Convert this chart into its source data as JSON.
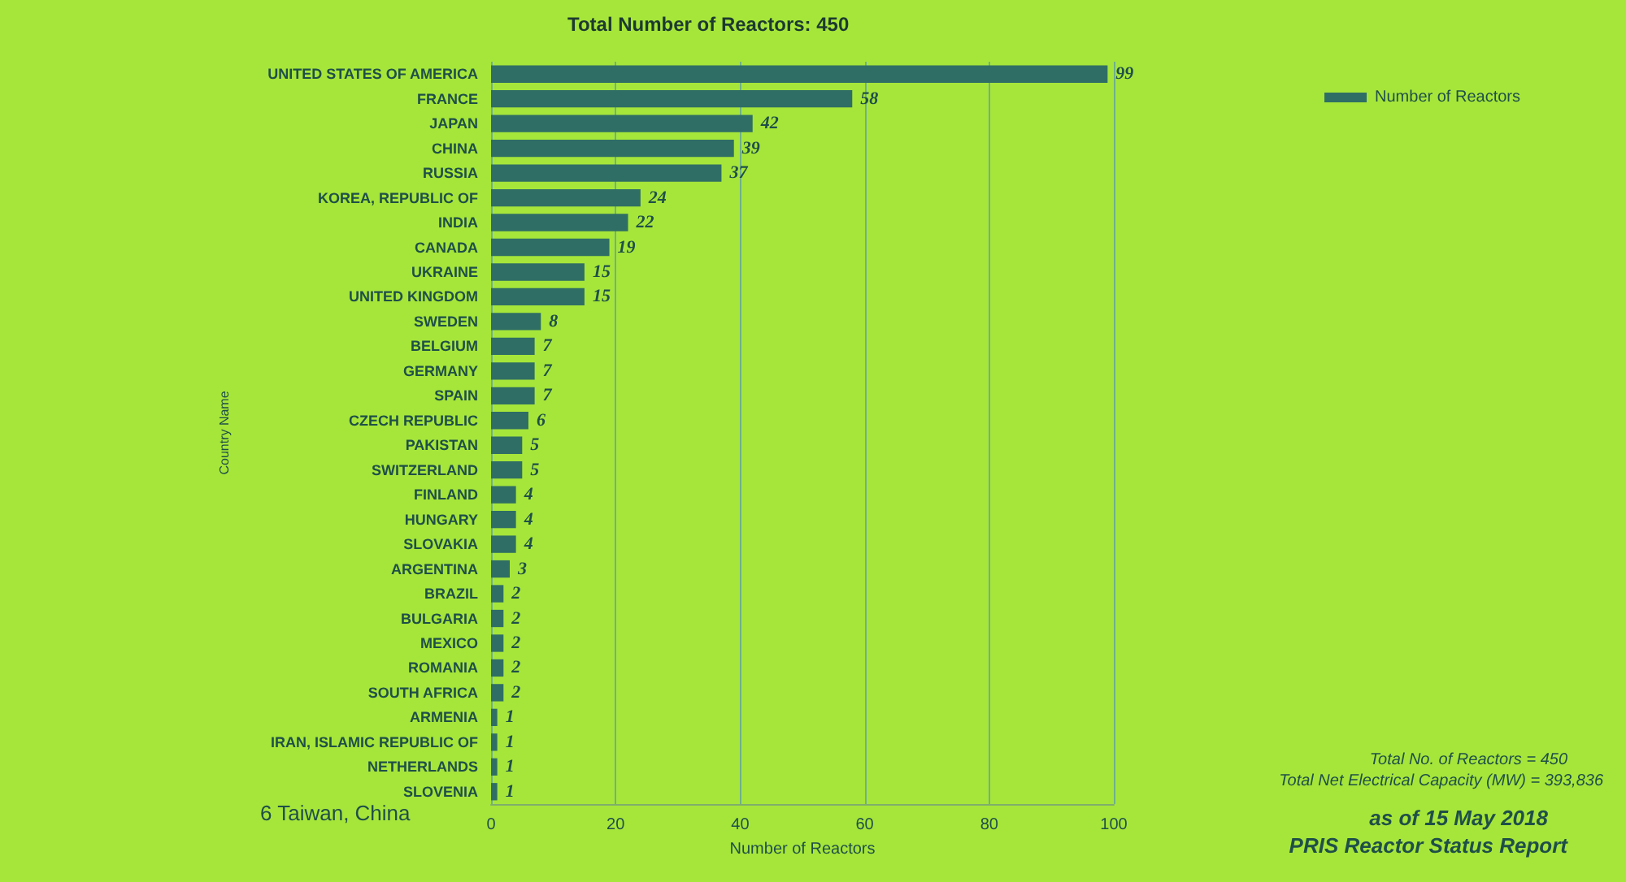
{
  "chart_data": {
    "type": "bar",
    "orientation": "horizontal",
    "title": "Total Number of Reactors: 450",
    "xlabel": "Number of Reactors",
    "ylabel": "Country Name",
    "categories": [
      "UNITED STATES OF AMERICA",
      "FRANCE",
      "JAPAN",
      "CHINA",
      "RUSSIA",
      "KOREA, REPUBLIC OF",
      "INDIA",
      "CANADA",
      "UKRAINE",
      "UNITED KINGDOM",
      "SWEDEN",
      "BELGIUM",
      "GERMANY",
      "SPAIN",
      "CZECH REPUBLIC",
      "PAKISTAN",
      "SWITZERLAND",
      "FINLAND",
      "HUNGARY",
      "SLOVAKIA",
      "ARGENTINA",
      "BRAZIL",
      "BULGARIA",
      "MEXICO",
      "ROMANIA",
      "SOUTH AFRICA",
      "ARMENIA",
      "IRAN, ISLAMIC REPUBLIC OF",
      "NETHERLANDS",
      "SLOVENIA"
    ],
    "series": [
      {
        "name": "Number of Reactors",
        "color": "#2f6e64",
        "values": [
          99,
          58,
          42,
          39,
          37,
          24,
          22,
          19,
          15,
          15,
          8,
          7,
          7,
          7,
          6,
          5,
          5,
          4,
          4,
          4,
          3,
          2,
          2,
          2,
          2,
          2,
          1,
          1,
          1,
          1
        ]
      }
    ],
    "data_labels": true,
    "xlim": [
      0,
      100
    ],
    "xticks": [
      0,
      20,
      40,
      60,
      80,
      100
    ],
    "grid": "x",
    "legend": "top right",
    "annotations": [
      "6 Taiwan, China",
      "Total No. of Reactors = 450",
      "Total Net Electrical Capacity (MW) = 393,836",
      "as of 15 May 2018",
      "PRIS Reactor Status Report"
    ]
  }
}
